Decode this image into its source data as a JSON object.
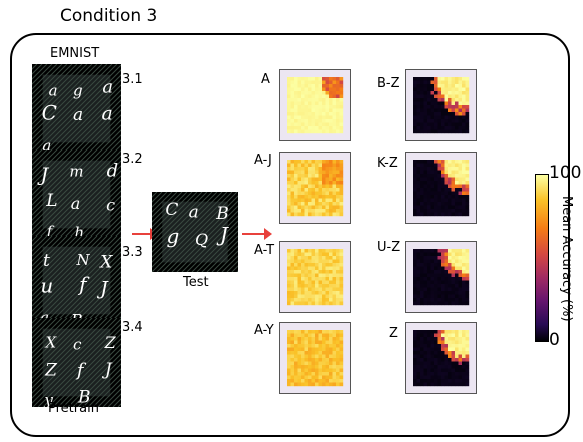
{
  "title": "Condition 3",
  "emnist_label": "EMNIST",
  "pretrain_label": "Pretrain",
  "test_label": "Test",
  "pretrain_tiles": [
    {
      "label": "3.1",
      "letters": [
        "a",
        "g",
        "a",
        "C",
        "a",
        "a",
        "a"
      ]
    },
    {
      "label": "3.2",
      "letters": [
        "J",
        "m",
        "d",
        "L",
        "a",
        "c",
        "f",
        "h"
      ]
    },
    {
      "label": "3.3",
      "letters": [
        "t",
        "N",
        "X",
        "u",
        "f",
        "J",
        "a",
        "B"
      ]
    },
    {
      "label": "3.4",
      "letters": [
        "X",
        "c",
        "Z",
        "Z",
        "f",
        "J",
        "y",
        "B"
      ]
    }
  ],
  "test_tile": {
    "letters": [
      "C",
      "a",
      "B",
      "g",
      "Q",
      "J"
    ]
  },
  "heatmaps_left": [
    {
      "label": "A",
      "level": 0.95
    },
    {
      "label": "A-J",
      "level": 0.85
    },
    {
      "label": "A-T",
      "level": 0.82
    },
    {
      "label": "A-Y",
      "level": 0.8
    }
  ],
  "heatmaps_right": [
    {
      "label": "B-Z"
    },
    {
      "label": "K-Z"
    },
    {
      "label": "U-Z"
    },
    {
      "label": "Z"
    }
  ],
  "colorbar": {
    "max_label": "100",
    "min_label": "0",
    "axis_label": "Mean Accuracy (%)",
    "colors": [
      "#000004",
      "#280b54",
      "#65156e",
      "#9f2a63",
      "#d44842",
      "#f57d15",
      "#fac228",
      "#fcffa4"
    ]
  },
  "arrow_color": "#e8413c"
}
